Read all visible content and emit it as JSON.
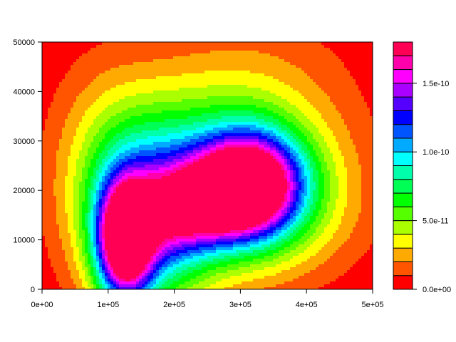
{
  "chart_data": {
    "type": "heatmap",
    "subtype": "filled-contour",
    "title": "",
    "xlabel": "",
    "ylabel": "",
    "xlim": [
      0,
      500000
    ],
    "ylim": [
      0,
      50000
    ],
    "x_ticks": [
      {
        "value": 0,
        "label": "0e+00"
      },
      {
        "value": 100000,
        "label": "1e+05"
      },
      {
        "value": 200000,
        "label": "2e+05"
      },
      {
        "value": 300000,
        "label": "3e+05"
      },
      {
        "value": 400000,
        "label": "4e+05"
      },
      {
        "value": 500000,
        "label": "5e+05"
      }
    ],
    "y_ticks": [
      {
        "value": 0,
        "label": "0"
      },
      {
        "value": 10000,
        "label": "10000"
      },
      {
        "value": 20000,
        "label": "20000"
      },
      {
        "value": 30000,
        "label": "30000"
      },
      {
        "value": 40000,
        "label": "40000"
      },
      {
        "value": 50000,
        "label": "50000"
      }
    ],
    "colorbar": {
      "levels": [
        0,
        1e-11,
        2e-11,
        3e-11,
        4e-11,
        5e-11,
        6e-11,
        7e-11,
        8e-11,
        9e-11,
        1e-10,
        1.1e-10,
        1.2e-10,
        1.3e-10,
        1.4e-10,
        1.5e-10,
        1.6e-10,
        1.7e-10
      ],
      "colors": [
        "#ff0000",
        "#ff5500",
        "#ffaa00",
        "#ffff00",
        "#aaff00",
        "#55ff00",
        "#00ff00",
        "#00ff55",
        "#00ffaa",
        "#00ffff",
        "#00aaff",
        "#0055ff",
        "#0000ff",
        "#5500ff",
        "#aa00ff",
        "#ff00ff",
        "#ff00aa",
        "#ff0055"
      ],
      "ticks": [
        {
          "value": 0,
          "label": "0.0e+00"
        },
        {
          "value": 5e-11,
          "label": "5.0e-11"
        },
        {
          "value": 1e-10,
          "label": "1.0e-10"
        },
        {
          "value": 1.5e-10,
          "label": "1.5e-10"
        }
      ]
    },
    "peaks": [
      {
        "x": 125000,
        "y": 9500,
        "value": 1.5e-10
      },
      {
        "x": 320000,
        "y": 21000,
        "value": 1.45e-10
      }
    ]
  }
}
